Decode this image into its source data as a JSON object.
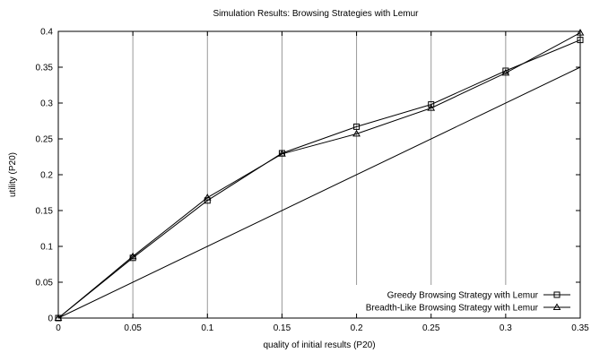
{
  "chart_data": {
    "type": "line",
    "title": "Simulation Results: Browsing Strategies with Lemur",
    "xlabel": "quality of initial results (P20)",
    "ylabel": "utility (P20)",
    "xlim": [
      0,
      0.35
    ],
    "ylim": [
      0,
      0.4
    ],
    "x_ticks": [
      "0",
      "0.05",
      "0.1",
      "0.15",
      "0.2",
      "0.25",
      "0.3",
      "0.35"
    ],
    "y_ticks": [
      "0",
      "0.05",
      "0.1",
      "0.15",
      "0.2",
      "0.25",
      "0.3",
      "0.35",
      "0.4"
    ],
    "grid": "vertical",
    "legend_position": "bottom-right",
    "series": [
      {
        "name": "Greedy Browsing Strategy with Lemur",
        "marker": "square",
        "x": [
          0,
          0.05,
          0.1,
          0.15,
          0.2,
          0.25,
          0.3,
          0.35
        ],
        "y": [
          0,
          0.084,
          0.164,
          0.23,
          0.267,
          0.298,
          0.345,
          0.388
        ]
      },
      {
        "name": "Breadth-Like Browsing Strategy with Lemur",
        "marker": "triangle",
        "x": [
          0,
          0.05,
          0.1,
          0.15,
          0.2,
          0.25,
          0.3,
          0.35
        ],
        "y": [
          0,
          0.086,
          0.168,
          0.229,
          0.257,
          0.293,
          0.342,
          0.398
        ]
      }
    ],
    "reference_line": {
      "x": [
        0,
        0.35
      ],
      "y": [
        0,
        0.35
      ]
    },
    "colors": {
      "line": "#000000",
      "grid": "#999999"
    }
  }
}
